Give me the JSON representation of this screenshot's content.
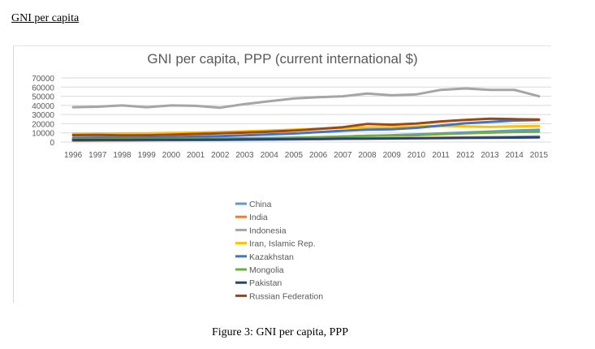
{
  "page": {
    "heading": "GNI per capita",
    "caption": "Figure 3: GNI per capita, PPP"
  },
  "chart_data": {
    "type": "line",
    "title": "GNI per capita, PPP (current international $)",
    "xlabel": "",
    "ylabel": "",
    "x": [
      "1996",
      "1997",
      "1998",
      "1999",
      "2000",
      "2001",
      "2002",
      "2003",
      "2004",
      "2005",
      "2006",
      "2007",
      "2008",
      "2009",
      "2010",
      "2011",
      "2012",
      "2013",
      "2014",
      "2015"
    ],
    "ylim": [
      0,
      70000
    ],
    "yticks": [
      "0",
      "10000",
      "20000",
      "30000",
      "40000",
      "50000",
      "60000",
      "70000"
    ],
    "grid": true,
    "legend_position": "bottom",
    "series": [
      {
        "name": "China",
        "color": "#5b9bd5",
        "values": [
          1500,
          1700,
          1900,
          2100,
          2300,
          2600,
          2900,
          3300,
          3800,
          4400,
          5100,
          5900,
          6700,
          7400,
          8300,
          9400,
          10400,
          11400,
          12500,
          13400
        ]
      },
      {
        "name": "India",
        "color": "#ed7d31",
        "values": [
          1700,
          1800,
          1900,
          2000,
          2100,
          2200,
          2300,
          2500,
          2700,
          2900,
          3200,
          3500,
          3800,
          4000,
          4300,
          4700,
          5000,
          5300,
          5600,
          5900
        ]
      },
      {
        "name": "Indonesia",
        "color": "#a5a5a5",
        "values": [
          38000,
          38500,
          40000,
          38000,
          40000,
          39500,
          37500,
          41500,
          44500,
          47500,
          49000,
          50000,
          53000,
          51000,
          52000,
          57000,
          58500,
          57000,
          57000,
          50000
        ]
      },
      {
        "name": "Iran, Islamic Rep.",
        "color": "#ffc000",
        "values": [
          9000,
          9200,
          9400,
          9500,
          10000,
          10300,
          11000,
          11800,
          12500,
          13500,
          14500,
          15500,
          16000,
          16200,
          17000,
          17600,
          17000,
          16500,
          17000,
          17500
        ]
      },
      {
        "name": "Kazakhstan",
        "color": "#4472c4",
        "values": [
          4500,
          4800,
          4700,
          4800,
          5200,
          5900,
          6500,
          7300,
          8300,
          9300,
          10800,
          12300,
          13500,
          14000,
          15500,
          18000,
          20500,
          22000,
          23500,
          24000
        ]
      },
      {
        "name": "Mongolia",
        "color": "#70ad47",
        "values": [
          3000,
          3100,
          3200,
          3300,
          3400,
          3600,
          3800,
          4000,
          4400,
          4800,
          5300,
          6000,
          6800,
          7000,
          7500,
          8600,
          9600,
          10300,
          11000,
          11300
        ]
      },
      {
        "name": "Pakistan",
        "color": "#264478",
        "values": [
          2200,
          2300,
          2300,
          2400,
          2500,
          2500,
          2600,
          2800,
          3000,
          3200,
          3400,
          3600,
          3800,
          3900,
          4100,
          4300,
          4500,
          4700,
          4900,
          5100
        ]
      },
      {
        "name": "Russian Federation",
        "color": "#9e480e",
        "values": [
          7500,
          7800,
          7300,
          7400,
          8000,
          8900,
          9500,
          10300,
          11300,
          12500,
          14300,
          16200,
          19800,
          19000,
          20200,
          22500,
          24200,
          25500,
          25000,
          24500
        ]
      }
    ]
  }
}
